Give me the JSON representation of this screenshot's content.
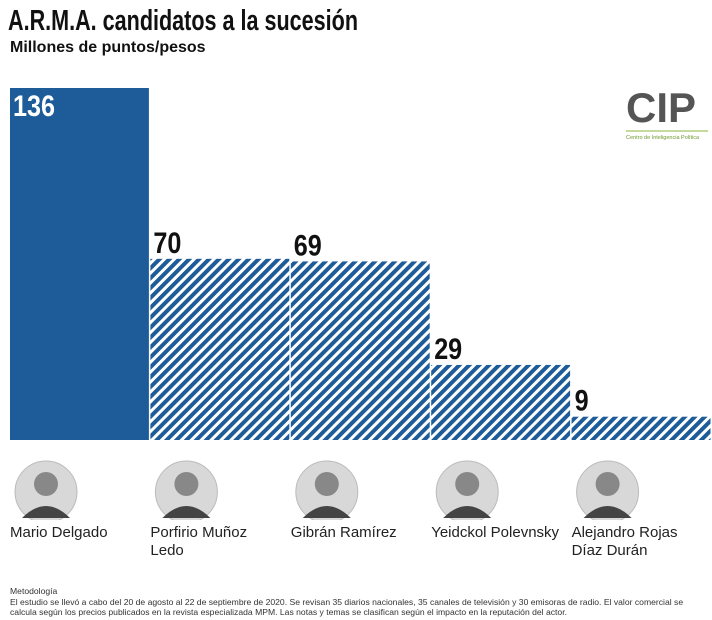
{
  "chart_data": {
    "type": "bar",
    "title": "A.R.M.A. candidatos a la sucesión",
    "subtitle": "Millones de puntos/pesos",
    "logo": "CIP",
    "logo_caption": "Centro de Inteligencia Política",
    "categories": [
      "Mario Delgado",
      "Porfirio Muñoz Ledo",
      "Gibrán Ramírez",
      "Yeidckol Polevnsky",
      "Alejandro Rojas Díaz Durán"
    ],
    "values": [
      136,
      70,
      69,
      29,
      9
    ],
    "color": "#1d5c98",
    "fills": [
      "solid",
      "hatched",
      "hatched",
      "hatched",
      "hatched"
    ],
    "note_title": "Metodología",
    "note": "El estudio se llevó a cabo del 20 de agosto al 22 de septiembre de 2020. Se revisan 35 diarios nacionales, 35 canales de televisión y 30 emisoras de radio. El valor comercial se calcula según los precios publicados en la revista especializada MPM. Las notas y temas se clasifican según el impacto en la reputación del actor."
  }
}
